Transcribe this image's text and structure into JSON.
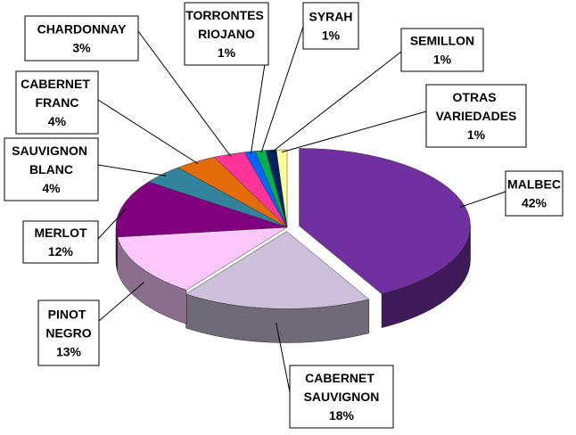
{
  "chart_data": {
    "type": "pie3d",
    "categories": [
      "MALBEC",
      "CABERNET SAUVIGNON",
      "PINOT NEGRO",
      "MERLOT",
      "SAUVIGNON BLANC",
      "CABERNET FRANC",
      "CHARDONNAY",
      "TORRONTES RIOJANO",
      "SYRAH",
      "SEMILLON",
      "OTRAS VARIEDADES"
    ],
    "values": [
      42,
      18,
      13,
      12,
      4,
      4,
      3,
      1,
      1,
      1,
      1
    ],
    "value_labels": [
      "42%",
      "18%",
      "13%",
      "12%",
      "4%",
      "4%",
      "3%",
      "1%",
      "1%",
      "1%",
      "1%"
    ],
    "colors": [
      "#7030a0",
      "#ccc0da",
      "#fcc8fc",
      "#800080",
      "#31849b",
      "#e36c09",
      "#ff3399",
      "#0066ff",
      "#00b050",
      "#002060",
      "#ffff99"
    ]
  }
}
